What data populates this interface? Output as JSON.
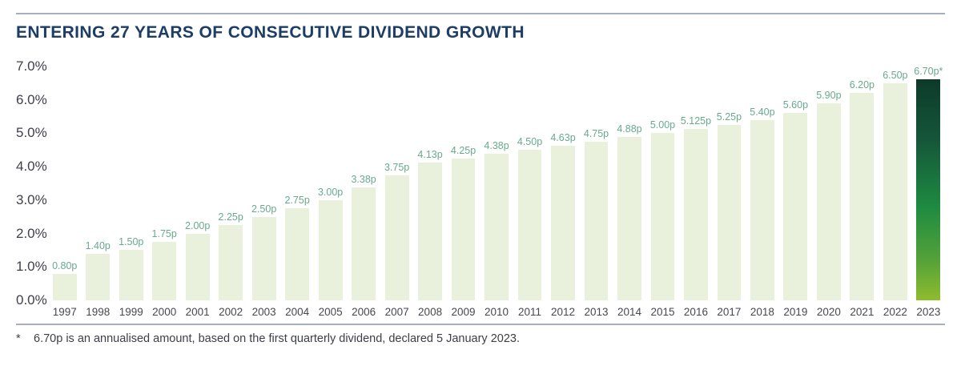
{
  "header": {
    "title": "ENTERING 27 YEARS OF CONSECUTIVE DIVIDEND GROWTH"
  },
  "chart_data": {
    "type": "bar",
    "title": "Entering 27 years of consecutive dividend growth",
    "categories": [
      "1997",
      "1998",
      "1999",
      "2000",
      "2001",
      "2002",
      "2003",
      "2004",
      "2005",
      "2006",
      "2007",
      "2008",
      "2009",
      "2010",
      "2011",
      "2012",
      "2013",
      "2014",
      "2015",
      "2016",
      "2017",
      "2018",
      "2019",
      "2020",
      "2021",
      "2022",
      "2023"
    ],
    "values": [
      0.8,
      1.4,
      1.5,
      1.75,
      2.0,
      2.25,
      2.5,
      2.75,
      3.0,
      3.38,
      3.75,
      4.13,
      4.25,
      4.38,
      4.5,
      4.63,
      4.75,
      4.88,
      5.0,
      5.125,
      5.25,
      5.4,
      5.6,
      5.9,
      6.2,
      6.5,
      6.7
    ],
    "bar_labels": [
      "0.80p",
      "1.40p",
      "1.50p",
      "1.75p",
      "2.00p",
      "2.25p",
      "2.50p",
      "2.75p",
      "3.00p",
      "3.38p",
      "3.75p",
      "4.13p",
      "4.25p",
      "4.38p",
      "4.50p",
      "4.63p",
      "4.75p",
      "4.88p",
      "5.00p",
      "5.125p",
      "5.25p",
      "5.40p",
      "5.60p",
      "5.90p",
      "6.20p",
      "6.50p",
      "6.70p*"
    ],
    "unit": "pence per share",
    "y_ticks": [
      "7.0%",
      "6.0%",
      "5.0%",
      "4.0%",
      "3.0%",
      "2.0%",
      "1.0%",
      "0.0%"
    ],
    "y_tick_values": [
      7,
      6,
      5,
      4,
      3,
      2,
      1,
      0
    ],
    "ylim": [
      0,
      7
    ],
    "grid": false,
    "legend": false,
    "highlight_index": 26,
    "colors": {
      "bar_fill": "#e9f0db",
      "bar_label": "#67aa8d",
      "highlight_gradient": [
        "#0d3a2a",
        "#15573a",
        "#1e8b40",
        "#55a239",
        "#8fbc2d"
      ],
      "title": "#1d3c66",
      "axis_text": "#3f404a",
      "year_text": "#47474f",
      "rule": "#a6aec2"
    }
  },
  "footnote": {
    "marker": "*",
    "text": "6.70p is an annualised amount, based on the first quarterly dividend, declared 5 January 2023."
  }
}
